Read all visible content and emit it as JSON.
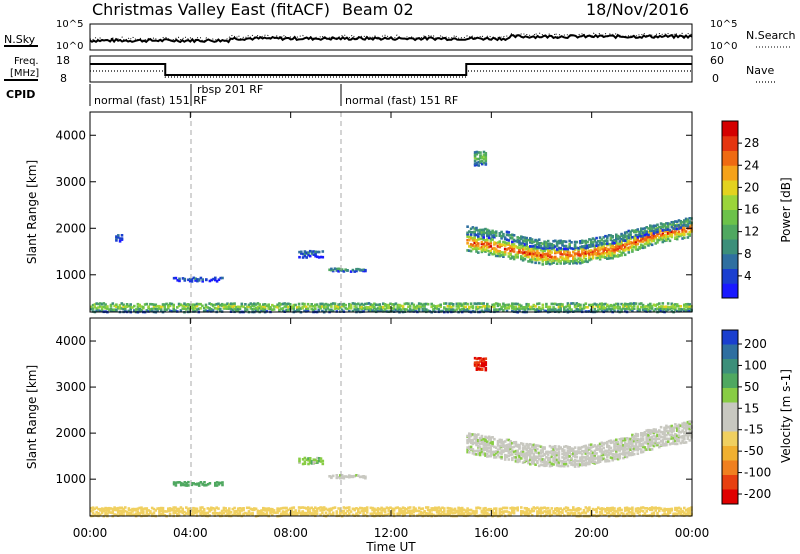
{
  "header": {
    "title": "Christmas Valley East (fitACF)",
    "beam": "Beam 02",
    "date": "18/Nov/2016"
  },
  "panels": {
    "nsky_label": "N.Sky",
    "nsearch_label": "N.Search",
    "nsky_ticks": [
      "10^5",
      "10^0"
    ],
    "nsearch_ticks": [
      "10^5",
      "10^0"
    ],
    "freq_label_1": "Freq.",
    "freq_label_2": "[MHz]",
    "freq_ticks": [
      "18",
      "8"
    ],
    "nave_label": "Nave",
    "nave_ticks": [
      "60",
      "0"
    ],
    "cpid_label": "CPID",
    "cpid_segments": [
      {
        "label": "normal (fast) 151 RF",
        "start_h": 0
      },
      {
        "label": "rbsp 201 RF",
        "start_h": 4
      },
      {
        "label": "normal (fast) 151 RF",
        "start_h": 10
      }
    ]
  },
  "colors": {
    "power_scale": [
      "#1a1aff",
      "#1a3fcf",
      "#2f6fa0",
      "#3c8f7a",
      "#4fa860",
      "#6cc24a",
      "#9bd43a",
      "#e3d21f",
      "#f5a21a",
      "#ef6a12",
      "#e53510",
      "#d40000"
    ],
    "velocity_scale": [
      "#1a3fcf",
      "#2f6fa0",
      "#3c8f7a",
      "#4fa860",
      "#88cc44",
      "#c8c8c0",
      "#c8c8c0",
      "#f0d060",
      "#f0b030",
      "#f08020",
      "#e84010",
      "#e00000"
    ]
  },
  "chart_data": [
    {
      "type": "heatmap",
      "panel": "power",
      "ylabel": "Slant Range [km]",
      "yticks": [
        1000,
        2000,
        3000,
        4000
      ],
      "ylim": [
        200,
        4500
      ],
      "xlim": [
        0,
        24
      ],
      "colorbar_label": "Power [dB]",
      "colorbar_ticks": [
        4,
        8,
        12,
        16,
        20,
        24,
        28
      ],
      "colorbar_range": [
        0,
        32
      ],
      "features": [
        {
          "t0": 15.0,
          "t1": 24.0,
          "r_center": [
            1700,
            1550,
            1400,
            1430,
            1550,
            1850,
            2000
          ],
          "width": 350,
          "value": 28
        },
        {
          "t0": 15.0,
          "t1": 24.0,
          "r_center": [
            1950,
            1850,
            1650,
            1650,
            1800,
            2000,
            2150
          ],
          "width": 200,
          "value": 12
        },
        {
          "t0": 15.3,
          "t1": 15.8,
          "r_center": [
            3500
          ],
          "width": 300,
          "value": 16
        },
        {
          "t0": 8.3,
          "t1": 9.3,
          "r_center": [
            1450
          ],
          "width": 150,
          "value": 8
        },
        {
          "t0": 9.5,
          "t1": 11.0,
          "r_center": [
            1100
          ],
          "width": 60,
          "value": 12
        },
        {
          "t0": 3.3,
          "t1": 5.3,
          "r_center": [
            900
          ],
          "width": 80,
          "value": 6
        },
        {
          "t0": 1.0,
          "t1": 1.3,
          "r_center": [
            1800
          ],
          "width": 150,
          "value": 6
        },
        {
          "t0": 0.0,
          "t1": 24.0,
          "r_center": [
            300
          ],
          "width": 200,
          "value": 18
        }
      ]
    },
    {
      "type": "heatmap",
      "panel": "velocity",
      "ylabel": "Slant Range [km]",
      "yticks": [
        1000,
        2000,
        3000,
        4000
      ],
      "ylim": [
        200,
        4500
      ],
      "xlim": [
        0,
        24
      ],
      "xlabel": "Time UT",
      "xticks": [
        "00:00",
        "04:00",
        "08:00",
        "12:00",
        "16:00",
        "20:00",
        "00:00"
      ],
      "colorbar_label": "Velocity [m s-1]",
      "colorbar_ticks": [
        200,
        100,
        50,
        15,
        -15,
        -50,
        -100,
        -200
      ],
      "features": [
        {
          "t0": 15.0,
          "t1": 24.0,
          "r_center": [
            1800,
            1650,
            1500,
            1500,
            1650,
            1900,
            2050
          ],
          "width": 450,
          "value": 0
        },
        {
          "t0": 15.3,
          "t1": 15.8,
          "r_center": [
            3500
          ],
          "width": 300,
          "value": -250
        },
        {
          "t0": 8.3,
          "t1": 9.3,
          "r_center": [
            1400
          ],
          "width": 150,
          "value": 10
        },
        {
          "t0": 9.5,
          "t1": 11.0,
          "r_center": [
            1050
          ],
          "width": 60,
          "value": 0
        },
        {
          "t0": 3.3,
          "t1": 5.3,
          "r_center": [
            900
          ],
          "width": 80,
          "value": 40
        },
        {
          "t0": 0.0,
          "t1": 24.0,
          "r_center": [
            300
          ],
          "width": 200,
          "value": -40
        }
      ]
    }
  ]
}
